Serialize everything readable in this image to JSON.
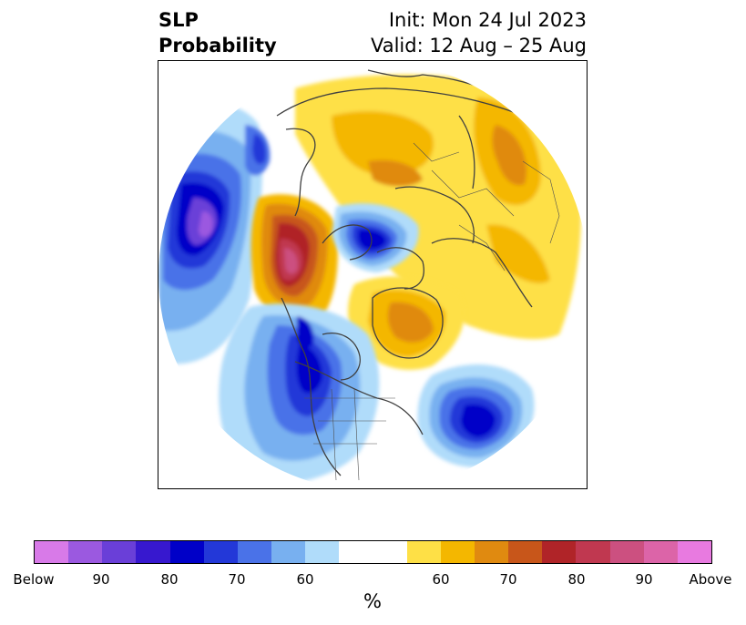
{
  "header": {
    "variable": "SLP",
    "type": "Probability",
    "init": "Init: Mon 24 Jul 2023",
    "valid": "Valid: 12 Aug – 25 Aug"
  },
  "colorbar": {
    "below_colors": [
      "#d87ae8",
      "#9b59e0",
      "#6a3fd8",
      "#3718cf",
      "#0000c8",
      "#2338d8",
      "#4a72e8",
      "#78b0f0",
      "#b0dcfa"
    ],
    "neutral_color": "#ffffff",
    "above_colors": [
      "#fee046",
      "#f4b700",
      "#e08a10",
      "#c8561a",
      "#b02428",
      "#c03850",
      "#cc5080",
      "#dc64a8",
      "#e87ae0"
    ],
    "tick_labels": [
      "Below",
      "90",
      "80",
      "70",
      "60",
      "60",
      "70",
      "80",
      "90",
      "Above"
    ],
    "unit": "%"
  },
  "map": {
    "projection": "north-polar-stereographic",
    "anomalies": [
      {
        "region": "North Pacific / Aleutians",
        "category": "below",
        "max_probability": "90–95"
      },
      {
        "region": "Alaska / Bering Sea",
        "category": "above",
        "max_probability": "80–90"
      },
      {
        "region": "Arctic Ocean",
        "category": "below",
        "max_probability": "80–85"
      },
      {
        "region": "Western North America",
        "category": "below",
        "max_probability": "75–80"
      },
      {
        "region": "North Atlantic",
        "category": "below",
        "max_probability": "75–80"
      },
      {
        "region": "Greenland",
        "category": "above",
        "max_probability": "65–70"
      },
      {
        "region": "Europe / Siberia",
        "category": "above",
        "max_probability": "65–70"
      }
    ]
  }
}
